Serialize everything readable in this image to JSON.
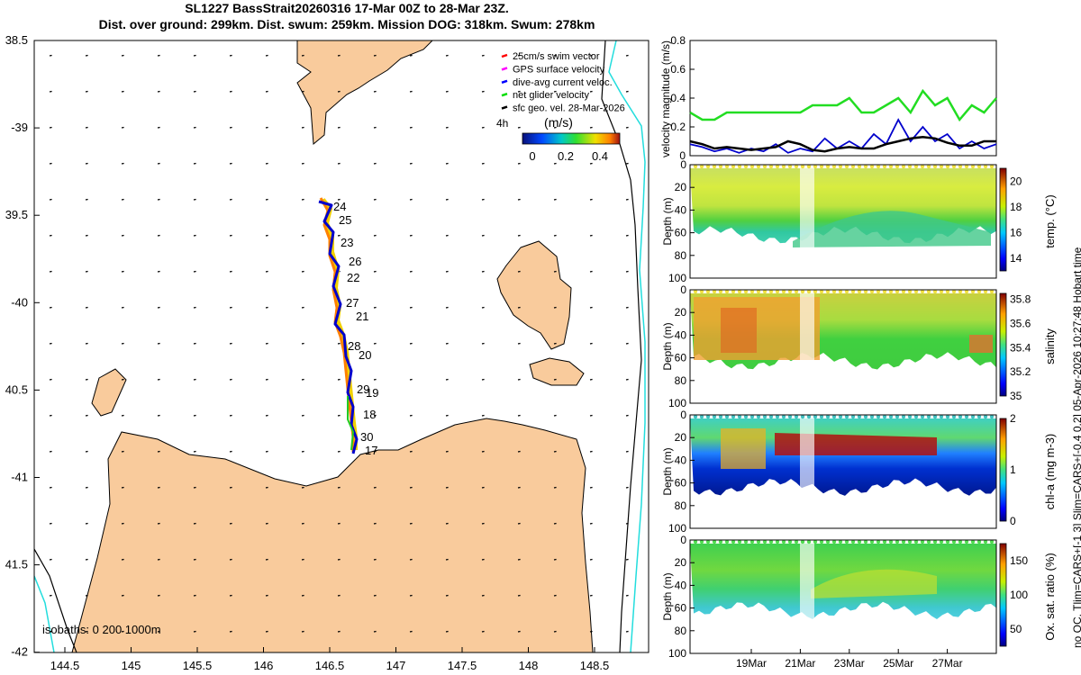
{
  "title_line1": "SL1227 BassStrait20260316 17-Mar 00Z to 28-Mar 23Z.",
  "title_line2": "Dist. over ground: 299km. Dist. swum: 259km. Mission DOG: 318km. Swum: 278km",
  "side_note": "no QC. Tlim=CARS+[-1 3] Slim=CARS+[-0.4 0.2] 05-Apr-2026 10:27:48 Hobart time",
  "map": {
    "lon_ticks": [
      "144.5",
      "145",
      "145.5",
      "146",
      "146.5",
      "147",
      "147.5",
      "148",
      "148.5"
    ],
    "lat_ticks": [
      "38.5",
      "-39",
      "39.5",
      "-40",
      "40.5",
      "-41",
      "41.5",
      "-42"
    ],
    "legend": [
      {
        "label": "25cm/s swim vector",
        "color": "#ff0000"
      },
      {
        "label": "GPS surface velocity",
        "color": "#ff00ff"
      },
      {
        "label": "dive-avg current veloc.",
        "color": "#0000ff"
      },
      {
        "label": "net glider velocity",
        "color": "#00dd00"
      },
      {
        "label": "sfc geo. vel. 28-Mar-2026",
        "color": "#000000"
      }
    ],
    "interval_label": "4h",
    "colorbar_unit": "(m/s)",
    "colorbar_ticks": [
      "0",
      "0.2",
      "0.4"
    ],
    "day_labels": [
      "24",
      "25",
      "23",
      "26",
      "22",
      "27",
      "21",
      "28",
      "20",
      "29",
      "19",
      "18",
      "30",
      "17"
    ],
    "isobaths": "isobaths: 0   200  1000m"
  },
  "chart_data": [
    {
      "type": "line",
      "title": "",
      "ylabel": "velocity magnitude (m/s)",
      "ylim": [
        0,
        0.8
      ],
      "yticks": [
        "0",
        "0.2",
        "0.4",
        "0.6",
        "0.8"
      ],
      "x_days": [
        16.5,
        17,
        17.5,
        18,
        18.5,
        19,
        19.5,
        20,
        20.5,
        21,
        21.5,
        22,
        22.5,
        23,
        23.5,
        24,
        24.5,
        25,
        25.5,
        26,
        26.5,
        27,
        27.5,
        28,
        28.5,
        29
      ],
      "series": [
        {
          "name": "net glider velocity",
          "color": "#22dd22",
          "values": [
            0.3,
            0.25,
            0.25,
            0.3,
            0.3,
            0.3,
            0.3,
            0.3,
            0.3,
            0.3,
            0.35,
            0.35,
            0.35,
            0.4,
            0.3,
            0.3,
            0.35,
            0.4,
            0.3,
            0.45,
            0.35,
            0.4,
            0.25,
            0.35,
            0.3,
            0.4
          ]
        },
        {
          "name": "dive-avg current veloc.",
          "color": "#0000cc",
          "values": [
            0.08,
            0.06,
            0.03,
            0.05,
            0.02,
            0.05,
            0.03,
            0.08,
            0.02,
            0.05,
            0.03,
            0.12,
            0.05,
            0.1,
            0.05,
            0.15,
            0.08,
            0.25,
            0.1,
            0.2,
            0.1,
            0.15,
            0.05,
            0.1,
            0.05,
            0.08
          ]
        },
        {
          "name": "sfc geo. vel.",
          "color": "#000000",
          "values": [
            0.1,
            0.08,
            0.05,
            0.06,
            0.05,
            0.04,
            0.05,
            0.06,
            0.1,
            0.08,
            0.04,
            0.03,
            0.05,
            0.06,
            0.05,
            0.05,
            0.08,
            0.1,
            0.12,
            0.13,
            0.12,
            0.09,
            0.07,
            0.07,
            0.1,
            0.1
          ]
        }
      ]
    },
    {
      "type": "heatmap",
      "ylabel": "Depth (m)",
      "ylim": [
        0,
        100
      ],
      "yticks": [
        "0",
        "20",
        "40",
        "60",
        "80",
        "100"
      ],
      "colorbar_label": "temp. (°C)",
      "colorbar_ticks": [
        "14",
        "16",
        "18",
        "20"
      ],
      "colorbar_range": [
        13,
        21
      ]
    },
    {
      "type": "heatmap",
      "ylabel": "Depth (m)",
      "ylim": [
        0,
        100
      ],
      "yticks": [
        "0",
        "20",
        "40",
        "60",
        "80",
        "100"
      ],
      "colorbar_label": "salinity",
      "colorbar_ticks": [
        "35",
        "35.2",
        "35.4",
        "35.6",
        "35.8"
      ],
      "colorbar_range": [
        35,
        35.85
      ]
    },
    {
      "type": "heatmap",
      "ylabel": "Depth (m)",
      "ylim": [
        0,
        100
      ],
      "yticks": [
        "0",
        "20",
        "40",
        "60",
        "80",
        "100"
      ],
      "colorbar_label": "chl-a (mg m-3)",
      "colorbar_ticks": [
        "0",
        "1",
        "2"
      ],
      "colorbar_range": [
        0,
        2
      ]
    },
    {
      "type": "heatmap",
      "ylabel": "Depth (m)",
      "ylim": [
        0,
        100
      ],
      "yticks": [
        "0",
        "20",
        "40",
        "60",
        "80",
        "100"
      ],
      "colorbar_label": "Ox. sat. ratio (%)",
      "colorbar_ticks": [
        "50",
        "100",
        "150"
      ],
      "colorbar_range": [
        25,
        175
      ],
      "xticks": [
        "19Mar",
        "21Mar",
        "23Mar",
        "25Mar",
        "27Mar"
      ]
    }
  ]
}
